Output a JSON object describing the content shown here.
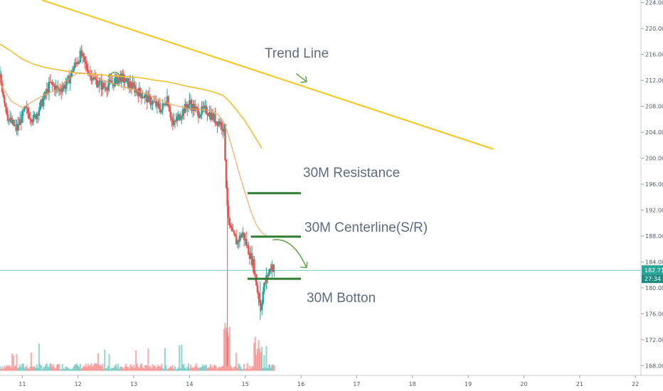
{
  "chart_data": {
    "type": "candlestick",
    "title": "",
    "xlabel": "",
    "ylabel": "",
    "x_ticks": [
      "11",
      "12",
      "13",
      "14",
      "15",
      "16",
      "17",
      "18",
      "19",
      "20",
      "21",
      "22"
    ],
    "x_range": [
      10.6,
      22.1
    ],
    "y_ticks": [
      "168.00",
      "172.00",
      "176.00",
      "180.00",
      "184.00",
      "188.00",
      "192.00",
      "196.00",
      "200.00",
      "204.00",
      "208.00",
      "212.00",
      "216.00",
      "220.00",
      "224.00"
    ],
    "y_range": [
      166.5,
      224.4
    ],
    "grid": false,
    "colors": {
      "up": "#26a69a",
      "down": "#ef5350",
      "trend_line": "#f5c518",
      "ma_fast": "#f7a35c",
      "ma_slow": "#f0c030",
      "levels": "#2e7d32",
      "arrow": "#6aa84f",
      "price_line": "#26a69a"
    },
    "current_price": {
      "value": 182.71,
      "label": "182.71",
      "countdown": "27:34"
    },
    "trend_line": {
      "label": "Trend Line",
      "points": [
        [
          11.35,
          224.4
        ],
        [
          19.45,
          201.4
        ]
      ]
    },
    "levels": [
      {
        "label": "30M Resistance",
        "y": 194.6,
        "x": [
          15.04,
          16.0
        ]
      },
      {
        "label": "30M Centerline(S/R)",
        "y": 187.9,
        "x": [
          15.1,
          16.0
        ]
      },
      {
        "label": "30M Botton",
        "y": 181.4,
        "x": [
          15.04,
          16.0
        ]
      }
    ],
    "ma_slow": [
      [
        10.6,
        217.6
      ],
      [
        10.8,
        216.5
      ],
      [
        11.0,
        215.3
      ],
      [
        11.2,
        214.5
      ],
      [
        11.4,
        214.0
      ],
      [
        11.6,
        213.7
      ],
      [
        11.8,
        213.4
      ],
      [
        12.0,
        213.1
      ],
      [
        12.2,
        213.0
      ],
      [
        12.4,
        212.9
      ],
      [
        12.6,
        212.7
      ],
      [
        12.8,
        212.6
      ],
      [
        13.0,
        212.5
      ],
      [
        13.2,
        212.3
      ],
      [
        13.4,
        212.0
      ],
      [
        13.6,
        211.8
      ],
      [
        13.8,
        211.4
      ],
      [
        14.0,
        211.0
      ],
      [
        14.2,
        210.7
      ],
      [
        14.4,
        210.3
      ],
      [
        14.6,
        209.7
      ],
      [
        14.7,
        208.9
      ],
      [
        14.8,
        207.9
      ],
      [
        14.9,
        206.8
      ],
      [
        15.0,
        205.7
      ],
      [
        15.1,
        204.3
      ],
      [
        15.2,
        202.9
      ],
      [
        15.3,
        201.5
      ]
    ],
    "ma_fast": [
      [
        10.6,
        211.5
      ],
      [
        10.8,
        208.8
      ],
      [
        11.0,
        207.8
      ],
      [
        11.2,
        208.8
      ],
      [
        11.4,
        209.8
      ],
      [
        11.6,
        210.5
      ],
      [
        11.8,
        212.0
      ],
      [
        12.0,
        213.2
      ],
      [
        12.2,
        213.0
      ],
      [
        12.4,
        212.2
      ],
      [
        12.6,
        211.6
      ],
      [
        12.8,
        211.0
      ],
      [
        13.0,
        210.6
      ],
      [
        13.2,
        210.0
      ],
      [
        13.4,
        209.2
      ],
      [
        13.6,
        208.5
      ],
      [
        13.8,
        208.0
      ],
      [
        14.0,
        207.6
      ],
      [
        14.2,
        207.5
      ],
      [
        14.4,
        207.3
      ],
      [
        14.5,
        206.8
      ],
      [
        14.6,
        205.8
      ],
      [
        14.7,
        203.5
      ],
      [
        14.8,
        200.5
      ],
      [
        14.9,
        197.4
      ],
      [
        15.0,
        194.6
      ],
      [
        15.1,
        191.8
      ],
      [
        15.2,
        189.7
      ],
      [
        15.3,
        188.5
      ],
      [
        15.4,
        187.9
      ]
    ],
    "price_path": [
      [
        10.6,
        212.5
      ],
      [
        10.75,
        206.0
      ],
      [
        10.9,
        204.5
      ],
      [
        11.05,
        207.5
      ],
      [
        11.2,
        206.0
      ],
      [
        11.35,
        208.5
      ],
      [
        11.5,
        211.5
      ],
      [
        11.65,
        210.5
      ],
      [
        11.8,
        211.5
      ],
      [
        11.95,
        214.5
      ],
      [
        12.05,
        216.0
      ],
      [
        12.15,
        214.0
      ],
      [
        12.3,
        212.0
      ],
      [
        12.45,
        211.0
      ],
      [
        12.6,
        211.5
      ],
      [
        12.75,
        212.5
      ],
      [
        12.9,
        211.5
      ],
      [
        13.05,
        210.5
      ],
      [
        13.2,
        209.5
      ],
      [
        13.35,
        208.5
      ],
      [
        13.5,
        207.5
      ],
      [
        13.6,
        209.5
      ],
      [
        13.7,
        205.0
      ],
      [
        13.85,
        207.0
      ],
      [
        14.0,
        208.5
      ],
      [
        14.15,
        207.0
      ],
      [
        14.3,
        207.5
      ],
      [
        14.45,
        206.0
      ],
      [
        14.55,
        205.5
      ],
      [
        14.62,
        204.5
      ],
      [
        14.66,
        196.0
      ],
      [
        14.7,
        190.0
      ],
      [
        14.75,
        188.5
      ],
      [
        14.85,
        187.0
      ],
      [
        14.95,
        188.5
      ],
      [
        15.05,
        186.0
      ],
      [
        15.15,
        183.5
      ],
      [
        15.22,
        179.5
      ],
      [
        15.28,
        177.0
      ],
      [
        15.33,
        180.0
      ],
      [
        15.4,
        182.0
      ],
      [
        15.48,
        183.5
      ],
      [
        15.52,
        182.7
      ]
    ],
    "volume_base_y": 167.2,
    "volume_scale": 0.1
  },
  "annotations": {
    "trend_line": "Trend Line",
    "resistance": "30M Resistance",
    "centerline": "30M Centerline(S/R)",
    "bottom": "30M Botton"
  }
}
